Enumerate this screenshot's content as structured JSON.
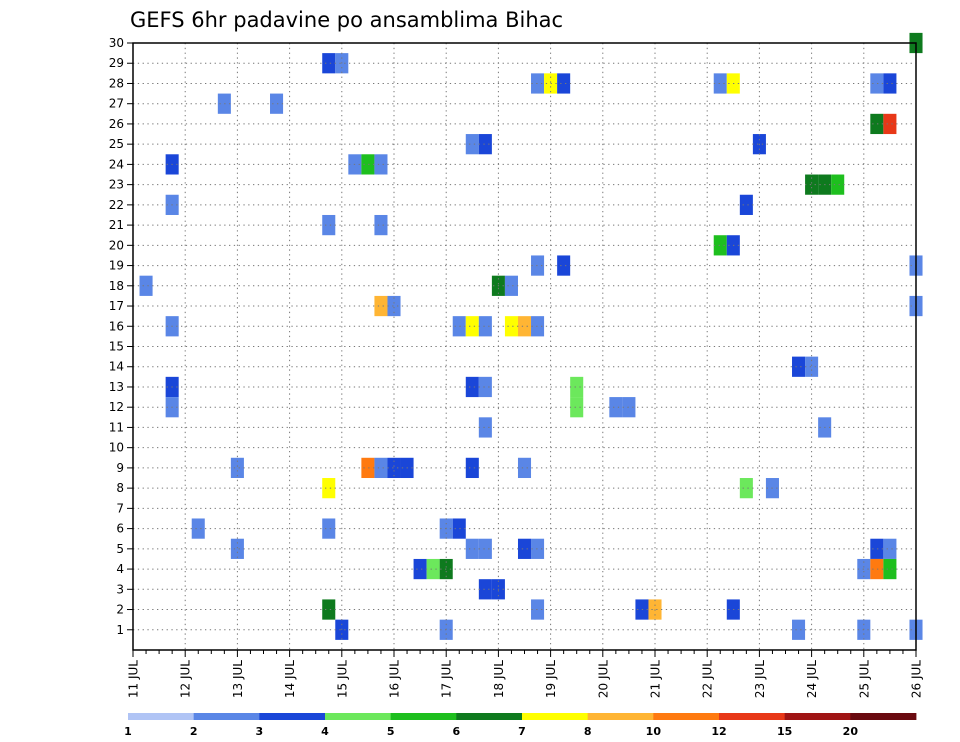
{
  "chart_data": {
    "type": "heatmap",
    "title": "GEFS 6hr padavine po ansamblima Bihac",
    "xlabel": "",
    "ylabel": "",
    "x_tick_labels": [
      "11 JUL",
      "12 JUL",
      "13 JUL",
      "14 JUL",
      "15 JUL",
      "16 JUL",
      "17 JUL",
      "18 JUL",
      "19 JUL",
      "20 JUL",
      "21 JUL",
      "22 JUL",
      "23 JUL",
      "24 JUL",
      "25 JUL",
      "26 JUL"
    ],
    "x_range_days": [
      11.0,
      26.0
    ],
    "y_tick_labels": [
      "1",
      "2",
      "3",
      "4",
      "5",
      "6",
      "7",
      "8",
      "9",
      "10",
      "11",
      "12",
      "13",
      "14",
      "15",
      "16",
      "17",
      "18",
      "19",
      "20",
      "21",
      "22",
      "23",
      "24",
      "25",
      "26",
      "27",
      "28",
      "29",
      "30"
    ],
    "y_range": [
      0,
      30
    ],
    "time_step_hours": 6,
    "grid": true,
    "colorbar": {
      "placement": "bottom",
      "tick_labels": [
        "1",
        "2",
        "3",
        "4",
        "5",
        "6",
        "7",
        "8",
        "10",
        "12",
        "15",
        "20"
      ],
      "colors": [
        "#b0c4f5",
        "#5a86e6",
        "#1a46d8",
        "#6ce85c",
        "#1ebf1e",
        "#0e7a1e",
        "#ffff00",
        "#ffb534",
        "#ff7a10",
        "#e83818",
        "#a01414",
        "#6a0a10"
      ]
    },
    "cells": [
      [
        30,
        26.0,
        5
      ],
      [
        29,
        14.75,
        2
      ],
      [
        29,
        15.0,
        1
      ],
      [
        28,
        18.75,
        1
      ],
      [
        28,
        19.0,
        6
      ],
      [
        28,
        19.25,
        2
      ],
      [
        28,
        22.25,
        1
      ],
      [
        28,
        22.5,
        6
      ],
      [
        28,
        25.25,
        1
      ],
      [
        28,
        25.5,
        2
      ],
      [
        27,
        12.75,
        1
      ],
      [
        27,
        13.75,
        1
      ],
      [
        26,
        25.25,
        5
      ],
      [
        26,
        25.5,
        9
      ],
      [
        25,
        17.5,
        1
      ],
      [
        25,
        17.75,
        2
      ],
      [
        25,
        23.0,
        2
      ],
      [
        24,
        11.75,
        2
      ],
      [
        24,
        15.25,
        1
      ],
      [
        24,
        15.5,
        4
      ],
      [
        24,
        15.75,
        1
      ],
      [
        23,
        24.0,
        5
      ],
      [
        23,
        24.25,
        5
      ],
      [
        23,
        24.5,
        4
      ],
      [
        22,
        11.75,
        1
      ],
      [
        22,
        22.75,
        2
      ],
      [
        21,
        14.75,
        1
      ],
      [
        21,
        15.75,
        1
      ],
      [
        20,
        22.25,
        4
      ],
      [
        20,
        22.5,
        2
      ],
      [
        19,
        18.75,
        1
      ],
      [
        19,
        19.25,
        2
      ],
      [
        19,
        26.0,
        1
      ],
      [
        18,
        11.25,
        1
      ],
      [
        18,
        18.0,
        5
      ],
      [
        18,
        18.25,
        1
      ],
      [
        17,
        15.75,
        7
      ],
      [
        17,
        16.0,
        1
      ],
      [
        17,
        26.0,
        1
      ],
      [
        16,
        11.75,
        1
      ],
      [
        16,
        17.25,
        1
      ],
      [
        16,
        17.5,
        6
      ],
      [
        16,
        17.75,
        1
      ],
      [
        16,
        18.25,
        6
      ],
      [
        16,
        18.5,
        7
      ],
      [
        16,
        18.75,
        1
      ],
      [
        14,
        23.75,
        2
      ],
      [
        14,
        24.0,
        1
      ],
      [
        13,
        11.75,
        2
      ],
      [
        13,
        17.5,
        2
      ],
      [
        13,
        17.75,
        1
      ],
      [
        13,
        19.5,
        3
      ],
      [
        12,
        11.75,
        1
      ],
      [
        12,
        19.5,
        3
      ],
      [
        12,
        20.25,
        1
      ],
      [
        12,
        20.5,
        1
      ],
      [
        11,
        17.75,
        1
      ],
      [
        11,
        24.25,
        1
      ],
      [
        9,
        13.0,
        1
      ],
      [
        9,
        15.5,
        8
      ],
      [
        9,
        15.75,
        1
      ],
      [
        9,
        16.0,
        2
      ],
      [
        9,
        16.25,
        2
      ],
      [
        9,
        17.5,
        2
      ],
      [
        9,
        18.5,
        1
      ],
      [
        8,
        14.75,
        6
      ],
      [
        8,
        22.75,
        3
      ],
      [
        8,
        23.25,
        1
      ],
      [
        6,
        12.25,
        1
      ],
      [
        6,
        14.75,
        1
      ],
      [
        6,
        17.0,
        1
      ],
      [
        6,
        17.25,
        2
      ],
      [
        5,
        13.0,
        1
      ],
      [
        5,
        17.5,
        1
      ],
      [
        5,
        17.75,
        1
      ],
      [
        5,
        18.5,
        2
      ],
      [
        5,
        18.75,
        1
      ],
      [
        5,
        25.25,
        2
      ],
      [
        5,
        25.5,
        1
      ],
      [
        4,
        16.5,
        2
      ],
      [
        4,
        16.75,
        3
      ],
      [
        4,
        17.0,
        5
      ],
      [
        4,
        25.0,
        1
      ],
      [
        4,
        25.25,
        8
      ],
      [
        4,
        25.5,
        4
      ],
      [
        3,
        17.75,
        2
      ],
      [
        3,
        18.0,
        2
      ],
      [
        2,
        14.75,
        5
      ],
      [
        2,
        18.75,
        1
      ],
      [
        2,
        20.75,
        2
      ],
      [
        2,
        21.0,
        7
      ],
      [
        2,
        22.5,
        2
      ],
      [
        1,
        15.0,
        2
      ],
      [
        1,
        17.0,
        1
      ],
      [
        1,
        23.75,
        1
      ],
      [
        1,
        25.0,
        1
      ],
      [
        1,
        26.0,
        1
      ]
    ]
  }
}
